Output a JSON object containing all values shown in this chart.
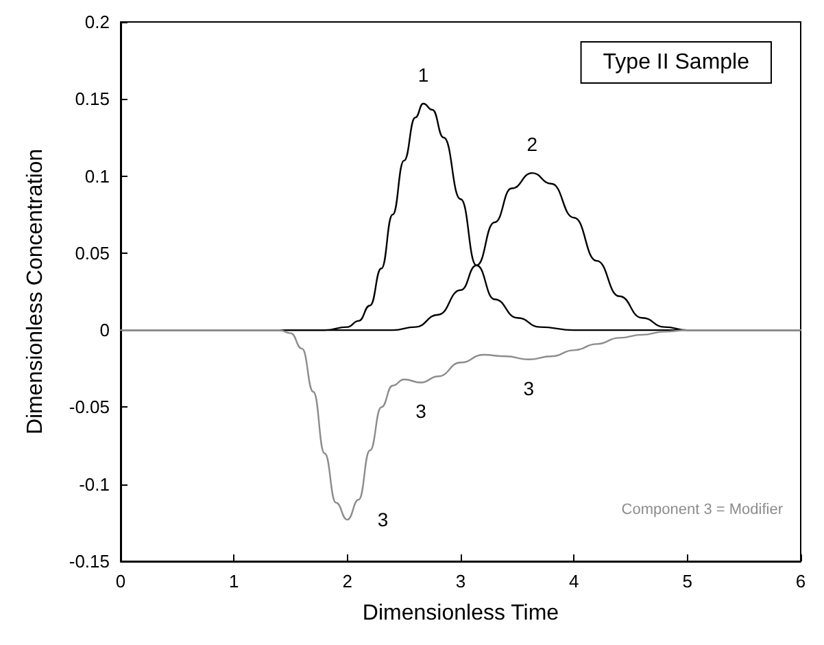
{
  "chart_data": {
    "type": "line",
    "xlabel": "Dimensionless Time",
    "ylabel": "Dimensionless Concentration",
    "xlim": [
      0,
      6
    ],
    "xticks": [
      0,
      1,
      2,
      3,
      4,
      5,
      6
    ],
    "ylim": [
      -0.15,
      0.2
    ],
    "yticks": [
      -0.15,
      -0.1,
      -0.05,
      0,
      0.05,
      0.1,
      0.15,
      0.2
    ],
    "grid": false,
    "marker": "none",
    "line_style": "solid",
    "series": [
      {
        "name": "1",
        "color": "#000000",
        "x": [
          0,
          1.8,
          2.0,
          2.1,
          2.2,
          2.3,
          2.4,
          2.5,
          2.6,
          2.67,
          2.75,
          2.85,
          3.0,
          3.14,
          3.3,
          3.5,
          3.7,
          4.0,
          6
        ],
        "values": [
          0,
          0,
          0.002,
          0.006,
          0.016,
          0.04,
          0.075,
          0.11,
          0.138,
          0.147,
          0.143,
          0.125,
          0.085,
          0.042,
          0.02,
          0.008,
          0.002,
          0,
          0
        ]
      },
      {
        "name": "2",
        "color": "#000000",
        "x": [
          0,
          2.4,
          2.6,
          2.8,
          3.0,
          3.14,
          3.3,
          3.45,
          3.63,
          3.8,
          4.0,
          4.2,
          4.4,
          4.6,
          4.8,
          5.0,
          6
        ],
        "values": [
          0,
          0,
          0.002,
          0.01,
          0.026,
          0.042,
          0.07,
          0.092,
          0.102,
          0.095,
          0.073,
          0.045,
          0.022,
          0.008,
          0.002,
          0,
          0
        ]
      },
      {
        "name": "3",
        "color": "#8c8c8c",
        "x": [
          0,
          1.4,
          1.5,
          1.6,
          1.7,
          1.8,
          1.9,
          2.0,
          2.1,
          2.2,
          2.3,
          2.4,
          2.5,
          2.65,
          2.8,
          3.0,
          3.2,
          3.4,
          3.6,
          3.8,
          4.0,
          4.2,
          4.4,
          4.6,
          4.8,
          5.0,
          6
        ],
        "values": [
          0,
          0,
          -0.002,
          -0.012,
          -0.04,
          -0.08,
          -0.112,
          -0.123,
          -0.11,
          -0.078,
          -0.05,
          -0.036,
          -0.032,
          -0.034,
          -0.03,
          -0.021,
          -0.016,
          -0.017,
          -0.019,
          -0.017,
          -0.013,
          -0.009,
          -0.005,
          -0.003,
          -0.001,
          0,
          0
        ]
      }
    ],
    "annotations": [
      "Type II Sample",
      "Component 3 = Modifier"
    ]
  }
}
